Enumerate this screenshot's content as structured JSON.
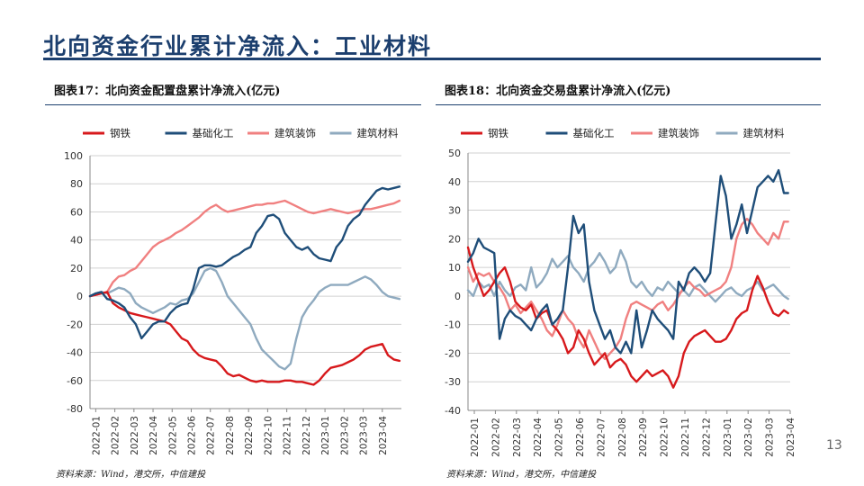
{
  "page": {
    "title": "北向资金行业累计净流入：工业材料",
    "page_number": "13",
    "title_color": "#1c3f6e"
  },
  "charts": [
    {
      "caption": "图表17：北向资金配置盘累计净流入(亿元)",
      "source": "资料来源：Wind，港交所，中信建投"
    },
    {
      "caption": "图表18：北向资金交易盘累计净流入(亿元)",
      "source": "资料来源：Wind，港交所，中信建投"
    }
  ],
  "chart_data": [
    {
      "type": "line",
      "title": "图表17：北向资金配置盘累计净流入(亿元)",
      "ylim": [
        -80,
        100
      ],
      "yticks": [
        -80,
        -60,
        -40,
        -20,
        0,
        20,
        40,
        60,
        80,
        100
      ],
      "grid": true,
      "legend": "top",
      "xticks": [
        "2022-01",
        "2022-02",
        "2022-03",
        "2022-04",
        "2022-05",
        "2022-06",
        "2022-07",
        "2022-08",
        "2022-09",
        "2022-10",
        "2022-11",
        "2022-12",
        "2023-01",
        "2023-02",
        "2023-03",
        "2023-04"
      ],
      "x_range": [
        0,
        16.3
      ],
      "series": [
        {
          "name": "钢铁",
          "color": "#d7191c",
          "x": [
            0,
            0.3,
            0.6,
            0.9,
            1.2,
            1.5,
            1.8,
            2.1,
            2.4,
            2.7,
            3.0,
            3.3,
            3.6,
            3.9,
            4.2,
            4.5,
            4.8,
            5.1,
            5.4,
            5.7,
            6.0,
            6.3,
            6.6,
            6.9,
            7.2,
            7.5,
            7.8,
            8.1,
            8.4,
            8.7,
            9.0,
            9.3,
            9.6,
            9.9,
            10.2,
            10.5,
            10.8,
            11.1,
            11.4,
            11.7,
            12.0,
            12.3,
            12.6,
            12.9,
            13.2,
            13.5,
            13.8,
            14.1,
            14.4,
            14.7,
            15.0,
            15.3,
            15.6,
            15.9,
            16.2
          ],
          "y": [
            0,
            1,
            2,
            3,
            -5,
            -8,
            -10,
            -12,
            -13,
            -14,
            -15,
            -16,
            -17,
            -18,
            -20,
            -25,
            -30,
            -32,
            -38,
            -42,
            -44,
            -45,
            -46,
            -50,
            -55,
            -57,
            -56,
            -58,
            -60,
            -61,
            -60,
            -61,
            -61,
            -61,
            -60,
            -60,
            -61,
            -61,
            -62,
            -63,
            -60,
            -55,
            -51,
            -50,
            -49,
            -47,
            -45,
            -42,
            -38,
            -36,
            -35,
            -34,
            -42,
            -45,
            -46
          ]
        },
        {
          "name": "基础化工",
          "color": "#1f4e79",
          "x": [
            0,
            0.3,
            0.6,
            0.9,
            1.2,
            1.5,
            1.8,
            2.1,
            2.4,
            2.7,
            3.0,
            3.3,
            3.6,
            3.9,
            4.2,
            4.5,
            4.8,
            5.1,
            5.4,
            5.7,
            6.0,
            6.3,
            6.6,
            6.9,
            7.2,
            7.5,
            7.8,
            8.1,
            8.4,
            8.7,
            9.0,
            9.3,
            9.6,
            9.9,
            10.2,
            10.5,
            10.8,
            11.1,
            11.4,
            11.7,
            12.0,
            12.3,
            12.6,
            12.9,
            13.2,
            13.5,
            13.8,
            14.1,
            14.4,
            14.7,
            15.0,
            15.3,
            15.6,
            15.9,
            16.2
          ],
          "y": [
            0,
            2,
            3,
            -2,
            -3,
            -5,
            -8,
            -15,
            -20,
            -30,
            -25,
            -20,
            -18,
            -18,
            -12,
            -8,
            -6,
            -5,
            5,
            20,
            22,
            22,
            21,
            22,
            25,
            28,
            30,
            33,
            35,
            45,
            50,
            57,
            58,
            55,
            45,
            40,
            35,
            33,
            35,
            30,
            27,
            26,
            25,
            35,
            40,
            50,
            55,
            58,
            65,
            70,
            75,
            77,
            76,
            77,
            78
          ]
        },
        {
          "name": "建筑装饰",
          "color": "#f08080",
          "x": [
            0,
            0.3,
            0.6,
            0.9,
            1.2,
            1.5,
            1.8,
            2.1,
            2.4,
            2.7,
            3.0,
            3.3,
            3.6,
            3.9,
            4.2,
            4.5,
            4.8,
            5.1,
            5.4,
            5.7,
            6.0,
            6.3,
            6.6,
            6.9,
            7.2,
            7.5,
            7.8,
            8.1,
            8.4,
            8.7,
            9.0,
            9.3,
            9.6,
            9.9,
            10.2,
            10.5,
            10.8,
            11.1,
            11.4,
            11.7,
            12.0,
            12.3,
            12.6,
            12.9,
            13.2,
            13.5,
            13.8,
            14.1,
            14.4,
            14.7,
            15.0,
            15.3,
            15.6,
            15.9,
            16.2
          ],
          "y": [
            0,
            1,
            2,
            3,
            10,
            14,
            15,
            18,
            20,
            25,
            30,
            35,
            38,
            40,
            42,
            45,
            47,
            50,
            53,
            56,
            60,
            63,
            65,
            62,
            60,
            61,
            62,
            63,
            64,
            65,
            65,
            66,
            66,
            67,
            68,
            66,
            64,
            62,
            60,
            59,
            60,
            61,
            62,
            61,
            60,
            59,
            60,
            61,
            62,
            62,
            63,
            64,
            65,
            66,
            68
          ]
        },
        {
          "name": "建筑材料",
          "color": "#8faabf",
          "x": [
            0,
            0.3,
            0.6,
            0.9,
            1.2,
            1.5,
            1.8,
            2.1,
            2.4,
            2.7,
            3.0,
            3.3,
            3.6,
            3.9,
            4.2,
            4.5,
            4.8,
            5.1,
            5.4,
            5.7,
            6.0,
            6.3,
            6.6,
            6.9,
            7.2,
            7.5,
            7.8,
            8.1,
            8.4,
            8.7,
            9.0,
            9.3,
            9.6,
            9.9,
            10.2,
            10.5,
            10.8,
            11.1,
            11.4,
            11.7,
            12.0,
            12.3,
            12.6,
            12.9,
            13.2,
            13.5,
            13.8,
            14.1,
            14.4,
            14.7,
            15.0,
            15.3,
            15.6,
            15.9,
            16.2
          ],
          "y": [
            0,
            2,
            3,
            2,
            4,
            6,
            5,
            2,
            -5,
            -8,
            -10,
            -12,
            -10,
            -8,
            -5,
            -6,
            -3,
            -2,
            2,
            10,
            18,
            20,
            18,
            10,
            0,
            -5,
            -10,
            -15,
            -20,
            -30,
            -38,
            -42,
            -46,
            -50,
            -52,
            -48,
            -30,
            -15,
            -8,
            -3,
            3,
            6,
            8,
            8,
            8,
            8,
            10,
            12,
            14,
            12,
            8,
            3,
            0,
            -1,
            -2
          ]
        }
      ]
    },
    {
      "type": "line",
      "title": "图表18：北向资金交易盘累计净流入(亿元)",
      "ylim": [
        -40,
        50
      ],
      "yticks": [
        -40,
        -30,
        -20,
        -10,
        0,
        10,
        20,
        30,
        40,
        50
      ],
      "grid": true,
      "legend": "top",
      "xticks": [
        "2022-01",
        "2022-02",
        "2022-03",
        "2022-04",
        "2022-05",
        "2022-06",
        "2022-07",
        "2022-08",
        "2022-09",
        "2022-10",
        "2022-11",
        "2022-12",
        "2023-01",
        "2023-02",
        "2023-03",
        "2023-04"
      ],
      "x_range": [
        0,
        15.3
      ],
      "series": [
        {
          "name": "钢铁",
          "color": "#d7191c",
          "x": [
            0,
            0.25,
            0.5,
            0.75,
            1.0,
            1.25,
            1.5,
            1.75,
            2.0,
            2.25,
            2.5,
            2.75,
            3.0,
            3.25,
            3.5,
            3.75,
            4.0,
            4.25,
            4.5,
            4.75,
            5.0,
            5.25,
            5.5,
            5.75,
            6.0,
            6.25,
            6.5,
            6.75,
            7.0,
            7.25,
            7.5,
            7.75,
            8.0,
            8.25,
            8.5,
            8.75,
            9.0,
            9.25,
            9.5,
            9.75,
            10.0,
            10.25,
            10.5,
            10.75,
            11.0,
            11.25,
            11.5,
            11.75,
            12.0,
            12.25,
            12.5,
            12.75,
            13.0,
            13.25,
            13.5,
            13.75,
            14.0,
            14.25,
            14.5,
            14.75,
            15.0,
            15.2
          ],
          "y": [
            17,
            10,
            5,
            0,
            2,
            5,
            8,
            10,
            5,
            -2,
            -4,
            -5,
            -3,
            -8,
            -6,
            -5,
            -10,
            -12,
            -15,
            -20,
            -18,
            -12,
            -15,
            -20,
            -24,
            -22,
            -20,
            -25,
            -23,
            -22,
            -24,
            -28,
            -30,
            -28,
            -26,
            -28,
            -27,
            -26,
            -28,
            -32,
            -28,
            -20,
            -16,
            -14,
            -13,
            -12,
            -14,
            -16,
            -16,
            -15,
            -12,
            -8,
            -6,
            -5,
            2,
            7,
            3,
            -2,
            -6,
            -7,
            -5,
            -6
          ]
        },
        {
          "name": "基础化工",
          "color": "#1f4e79",
          "x": [
            0,
            0.25,
            0.5,
            0.75,
            1.0,
            1.25,
            1.5,
            1.75,
            2.0,
            2.25,
            2.5,
            2.75,
            3.0,
            3.25,
            3.5,
            3.75,
            4.0,
            4.25,
            4.5,
            4.75,
            5.0,
            5.25,
            5.5,
            5.75,
            6.0,
            6.25,
            6.5,
            6.75,
            7.0,
            7.25,
            7.5,
            7.75,
            8.0,
            8.25,
            8.5,
            8.75,
            9.0,
            9.25,
            9.5,
            9.75,
            10.0,
            10.25,
            10.5,
            10.75,
            11.0,
            11.25,
            11.5,
            11.75,
            12.0,
            12.25,
            12.5,
            12.75,
            13.0,
            13.25,
            13.5,
            13.75,
            14.0,
            14.25,
            14.5,
            14.75,
            15.0,
            15.2
          ],
          "y": [
            12,
            15,
            20,
            17,
            16,
            15,
            -15,
            -8,
            -5,
            -7,
            -8,
            -10,
            -12,
            -8,
            -5,
            -3,
            -10,
            -8,
            -5,
            10,
            28,
            22,
            25,
            5,
            -5,
            -10,
            -15,
            -12,
            -18,
            -20,
            -16,
            -20,
            -5,
            -18,
            -12,
            -5,
            -8,
            -10,
            -12,
            -15,
            5,
            2,
            8,
            10,
            8,
            5,
            8,
            25,
            42,
            35,
            20,
            25,
            32,
            22,
            30,
            38,
            40,
            42,
            40,
            44,
            36,
            36
          ]
        },
        {
          "name": "建筑装饰",
          "color": "#f08080",
          "x": [
            0,
            0.25,
            0.5,
            0.75,
            1.0,
            1.25,
            1.5,
            1.75,
            2.0,
            2.25,
            2.5,
            2.75,
            3.0,
            3.25,
            3.5,
            3.75,
            4.0,
            4.25,
            4.5,
            4.75,
            5.0,
            5.25,
            5.5,
            5.75,
            6.0,
            6.25,
            6.5,
            6.75,
            7.0,
            7.25,
            7.5,
            7.75,
            8.0,
            8.25,
            8.5,
            8.75,
            9.0,
            9.25,
            9.5,
            9.75,
            10.0,
            10.25,
            10.5,
            10.75,
            11.0,
            11.25,
            11.5,
            11.75,
            12.0,
            12.25,
            12.5,
            12.75,
            13.0,
            13.25,
            13.5,
            13.75,
            14.0,
            14.25,
            14.5,
            14.75,
            15.0,
            15.2
          ],
          "y": [
            10,
            5,
            8,
            7,
            8,
            5,
            3,
            0,
            -5,
            -3,
            -6,
            -4,
            -2,
            -5,
            -8,
            -12,
            -14,
            -10,
            -5,
            -8,
            -10,
            -15,
            -18,
            -12,
            -16,
            -20,
            -22,
            -20,
            -18,
            -15,
            -8,
            -3,
            -2,
            -3,
            -4,
            -5,
            -3,
            -2,
            -5,
            -3,
            0,
            3,
            5,
            3,
            2,
            0,
            1,
            2,
            3,
            5,
            10,
            20,
            25,
            27,
            25,
            22,
            20,
            18,
            22,
            20,
            26,
            26
          ]
        },
        {
          "name": "建筑材料",
          "color": "#8faabf",
          "x": [
            0,
            0.25,
            0.5,
            0.75,
            1.0,
            1.25,
            1.5,
            1.75,
            2.0,
            2.25,
            2.5,
            2.75,
            3.0,
            3.25,
            3.5,
            3.75,
            4.0,
            4.25,
            4.5,
            4.75,
            5.0,
            5.25,
            5.5,
            5.75,
            6.0,
            6.25,
            6.5,
            6.75,
            7.0,
            7.25,
            7.5,
            7.75,
            8.0,
            8.25,
            8.5,
            8.75,
            9.0,
            9.25,
            9.5,
            9.75,
            10.0,
            10.25,
            10.5,
            10.75,
            11.0,
            11.25,
            11.5,
            11.75,
            12.0,
            12.25,
            12.5,
            12.75,
            13.0,
            13.25,
            13.5,
            13.75,
            14.0,
            14.25,
            14.5,
            14.75,
            15.0,
            15.2
          ],
          "y": [
            2,
            0,
            5,
            3,
            4,
            0,
            5,
            2,
            0,
            3,
            4,
            2,
            10,
            3,
            5,
            8,
            13,
            10,
            12,
            14,
            10,
            8,
            5,
            10,
            12,
            15,
            12,
            8,
            10,
            16,
            12,
            5,
            3,
            5,
            2,
            0,
            3,
            2,
            5,
            3,
            1,
            2,
            0,
            3,
            4,
            2,
            0,
            -2,
            0,
            2,
            3,
            1,
            0,
            2,
            3,
            5,
            2,
            3,
            4,
            2,
            0,
            -1
          ]
        }
      ]
    }
  ]
}
